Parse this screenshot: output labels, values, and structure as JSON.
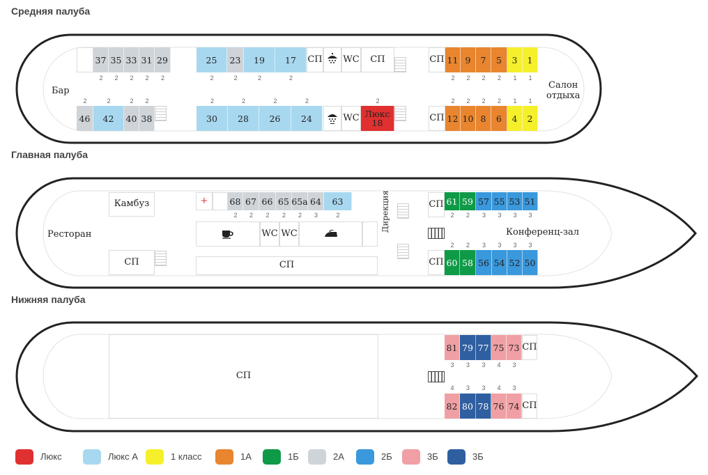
{
  "colors": {
    "luxe": "#e03030",
    "luxeA": "#a8d8f0",
    "class1": "#f5f02a",
    "c1A": "#e8852e",
    "c1B": "#0f9a48",
    "c2A": "#cfd4d9",
    "c2B": "#3a98dc",
    "c3B_light": "#f0a0a4",
    "c3B_dark": "#2f5fa0"
  },
  "decks": {
    "middle": {
      "title": "Средняя палуба",
      "bar": "Бар",
      "salon": "Салон\nотдыха",
      "sp": "СП",
      "wc": "WC",
      "luxe18": "Люкс\n18",
      "top_cabins": [
        {
          "num": "37",
          "color": "c2A",
          "cap": "2"
        },
        {
          "num": "35",
          "color": "c2A",
          "cap": "2"
        },
        {
          "num": "33",
          "color": "c2A",
          "cap": "2"
        },
        {
          "num": "31",
          "color": "c2A",
          "cap": "2"
        },
        {
          "num": "29",
          "color": "c2A",
          "cap": "2"
        },
        {
          "num": "25",
          "color": "luxeA",
          "cap": "2"
        },
        {
          "num": "23",
          "color": "c2A",
          "cap": "2"
        },
        {
          "num": "19",
          "color": "luxeA",
          "cap": "2"
        },
        {
          "num": "17",
          "color": "luxeA",
          "cap": "2"
        },
        {
          "num": "11",
          "color": "c1A",
          "cap": "2"
        },
        {
          "num": "9",
          "color": "c1A",
          "cap": "2"
        },
        {
          "num": "7",
          "color": "c1A",
          "cap": "2"
        },
        {
          "num": "5",
          "color": "c1A",
          "cap": "2"
        },
        {
          "num": "3",
          "color": "class1",
          "cap": "1"
        },
        {
          "num": "1",
          "color": "class1",
          "cap": "1"
        }
      ],
      "bottom_cabins": [
        {
          "num": "46",
          "color": "c2A",
          "cap": "2"
        },
        {
          "num": "42",
          "color": "luxeA",
          "cap": "2"
        },
        {
          "num": "40",
          "color": "c2A",
          "cap": "2"
        },
        {
          "num": "38",
          "color": "c2A",
          "cap": "2"
        },
        {
          "num": "30",
          "color": "luxeA",
          "cap": "2"
        },
        {
          "num": "28",
          "color": "luxeA",
          "cap": "2"
        },
        {
          "num": "26",
          "color": "luxeA",
          "cap": "2"
        },
        {
          "num": "24",
          "color": "luxeA",
          "cap": "2"
        },
        {
          "num": "12",
          "color": "c1A",
          "cap": "2"
        },
        {
          "num": "10",
          "color": "c1A",
          "cap": "2"
        },
        {
          "num": "8",
          "color": "c1A",
          "cap": "2"
        },
        {
          "num": "6",
          "color": "c1A",
          "cap": "2"
        },
        {
          "num": "4",
          "color": "class1",
          "cap": "1"
        },
        {
          "num": "2",
          "color": "class1",
          "cap": "1"
        }
      ],
      "luxe18_cap": "2"
    },
    "main": {
      "title": "Главная палуба",
      "kambuz": "Камбуз",
      "restaurant": "Ресторан",
      "sp": "СП",
      "wc": "WC",
      "plus": "+",
      "direction": "Дирекция",
      "conference": "Конференц-зал",
      "top_cabins": [
        {
          "num": "68",
          "color": "c2A",
          "cap": "2"
        },
        {
          "num": "67",
          "color": "c2A",
          "cap": "2"
        },
        {
          "num": "66",
          "color": "c2A",
          "cap": "2"
        },
        {
          "num": "65",
          "color": "c2A",
          "cap": "2"
        },
        {
          "num": "65а",
          "color": "c2A",
          "cap": "2"
        },
        {
          "num": "64",
          "color": "c2A",
          "cap": "3"
        },
        {
          "num": "63",
          "color": "luxeA",
          "cap": "2"
        },
        {
          "num": "61",
          "color": "c1B",
          "cap": "2"
        },
        {
          "num": "59",
          "color": "c1B",
          "cap": "2"
        },
        {
          "num": "57",
          "color": "c2B",
          "cap": "3"
        },
        {
          "num": "55",
          "color": "c2B",
          "cap": "3"
        },
        {
          "num": "53",
          "color": "c2B",
          "cap": "3"
        },
        {
          "num": "51",
          "color": "c2B",
          "cap": "3"
        }
      ],
      "bottom_cabins": [
        {
          "num": "60",
          "color": "c1B",
          "cap": "2"
        },
        {
          "num": "58",
          "color": "c1B",
          "cap": "2"
        },
        {
          "num": "56",
          "color": "c2B",
          "cap": "3"
        },
        {
          "num": "54",
          "color": "c2B",
          "cap": "3"
        },
        {
          "num": "52",
          "color": "c2B",
          "cap": "3"
        },
        {
          "num": "50",
          "color": "c2B",
          "cap": "3"
        }
      ]
    },
    "lower": {
      "title": "Нижняя палуба",
      "sp": "СП",
      "top_cabins": [
        {
          "num": "81",
          "color": "c3B_light",
          "cap": "3"
        },
        {
          "num": "79",
          "color": "c3B_dark",
          "cap": "3"
        },
        {
          "num": "77",
          "color": "c3B_dark",
          "cap": "3"
        },
        {
          "num": "75",
          "color": "c3B_light",
          "cap": "4"
        },
        {
          "num": "73",
          "color": "c3B_light",
          "cap": "3"
        }
      ],
      "bottom_cabins": [
        {
          "num": "82",
          "color": "c3B_light",
          "cap": "4"
        },
        {
          "num": "80",
          "color": "c3B_dark",
          "cap": "3"
        },
        {
          "num": "78",
          "color": "c3B_dark",
          "cap": "3"
        },
        {
          "num": "76",
          "color": "c3B_light",
          "cap": "4"
        },
        {
          "num": "74",
          "color": "c3B_light",
          "cap": "3"
        }
      ]
    }
  },
  "legend": [
    {
      "label": "Люкс",
      "color": "luxe"
    },
    {
      "label": "Люкс А",
      "color": "luxeA"
    },
    {
      "label": "1 класс",
      "color": "class1"
    },
    {
      "label": "1А",
      "color": "c1A"
    },
    {
      "label": "1Б",
      "color": "c1B"
    },
    {
      "label": "2А",
      "color": "c2A"
    },
    {
      "label": "2Б",
      "color": "c2B"
    },
    {
      "label": "3Б",
      "color": "c3B_light"
    },
    {
      "label": "3Б",
      "color": "c3B_dark"
    }
  ]
}
